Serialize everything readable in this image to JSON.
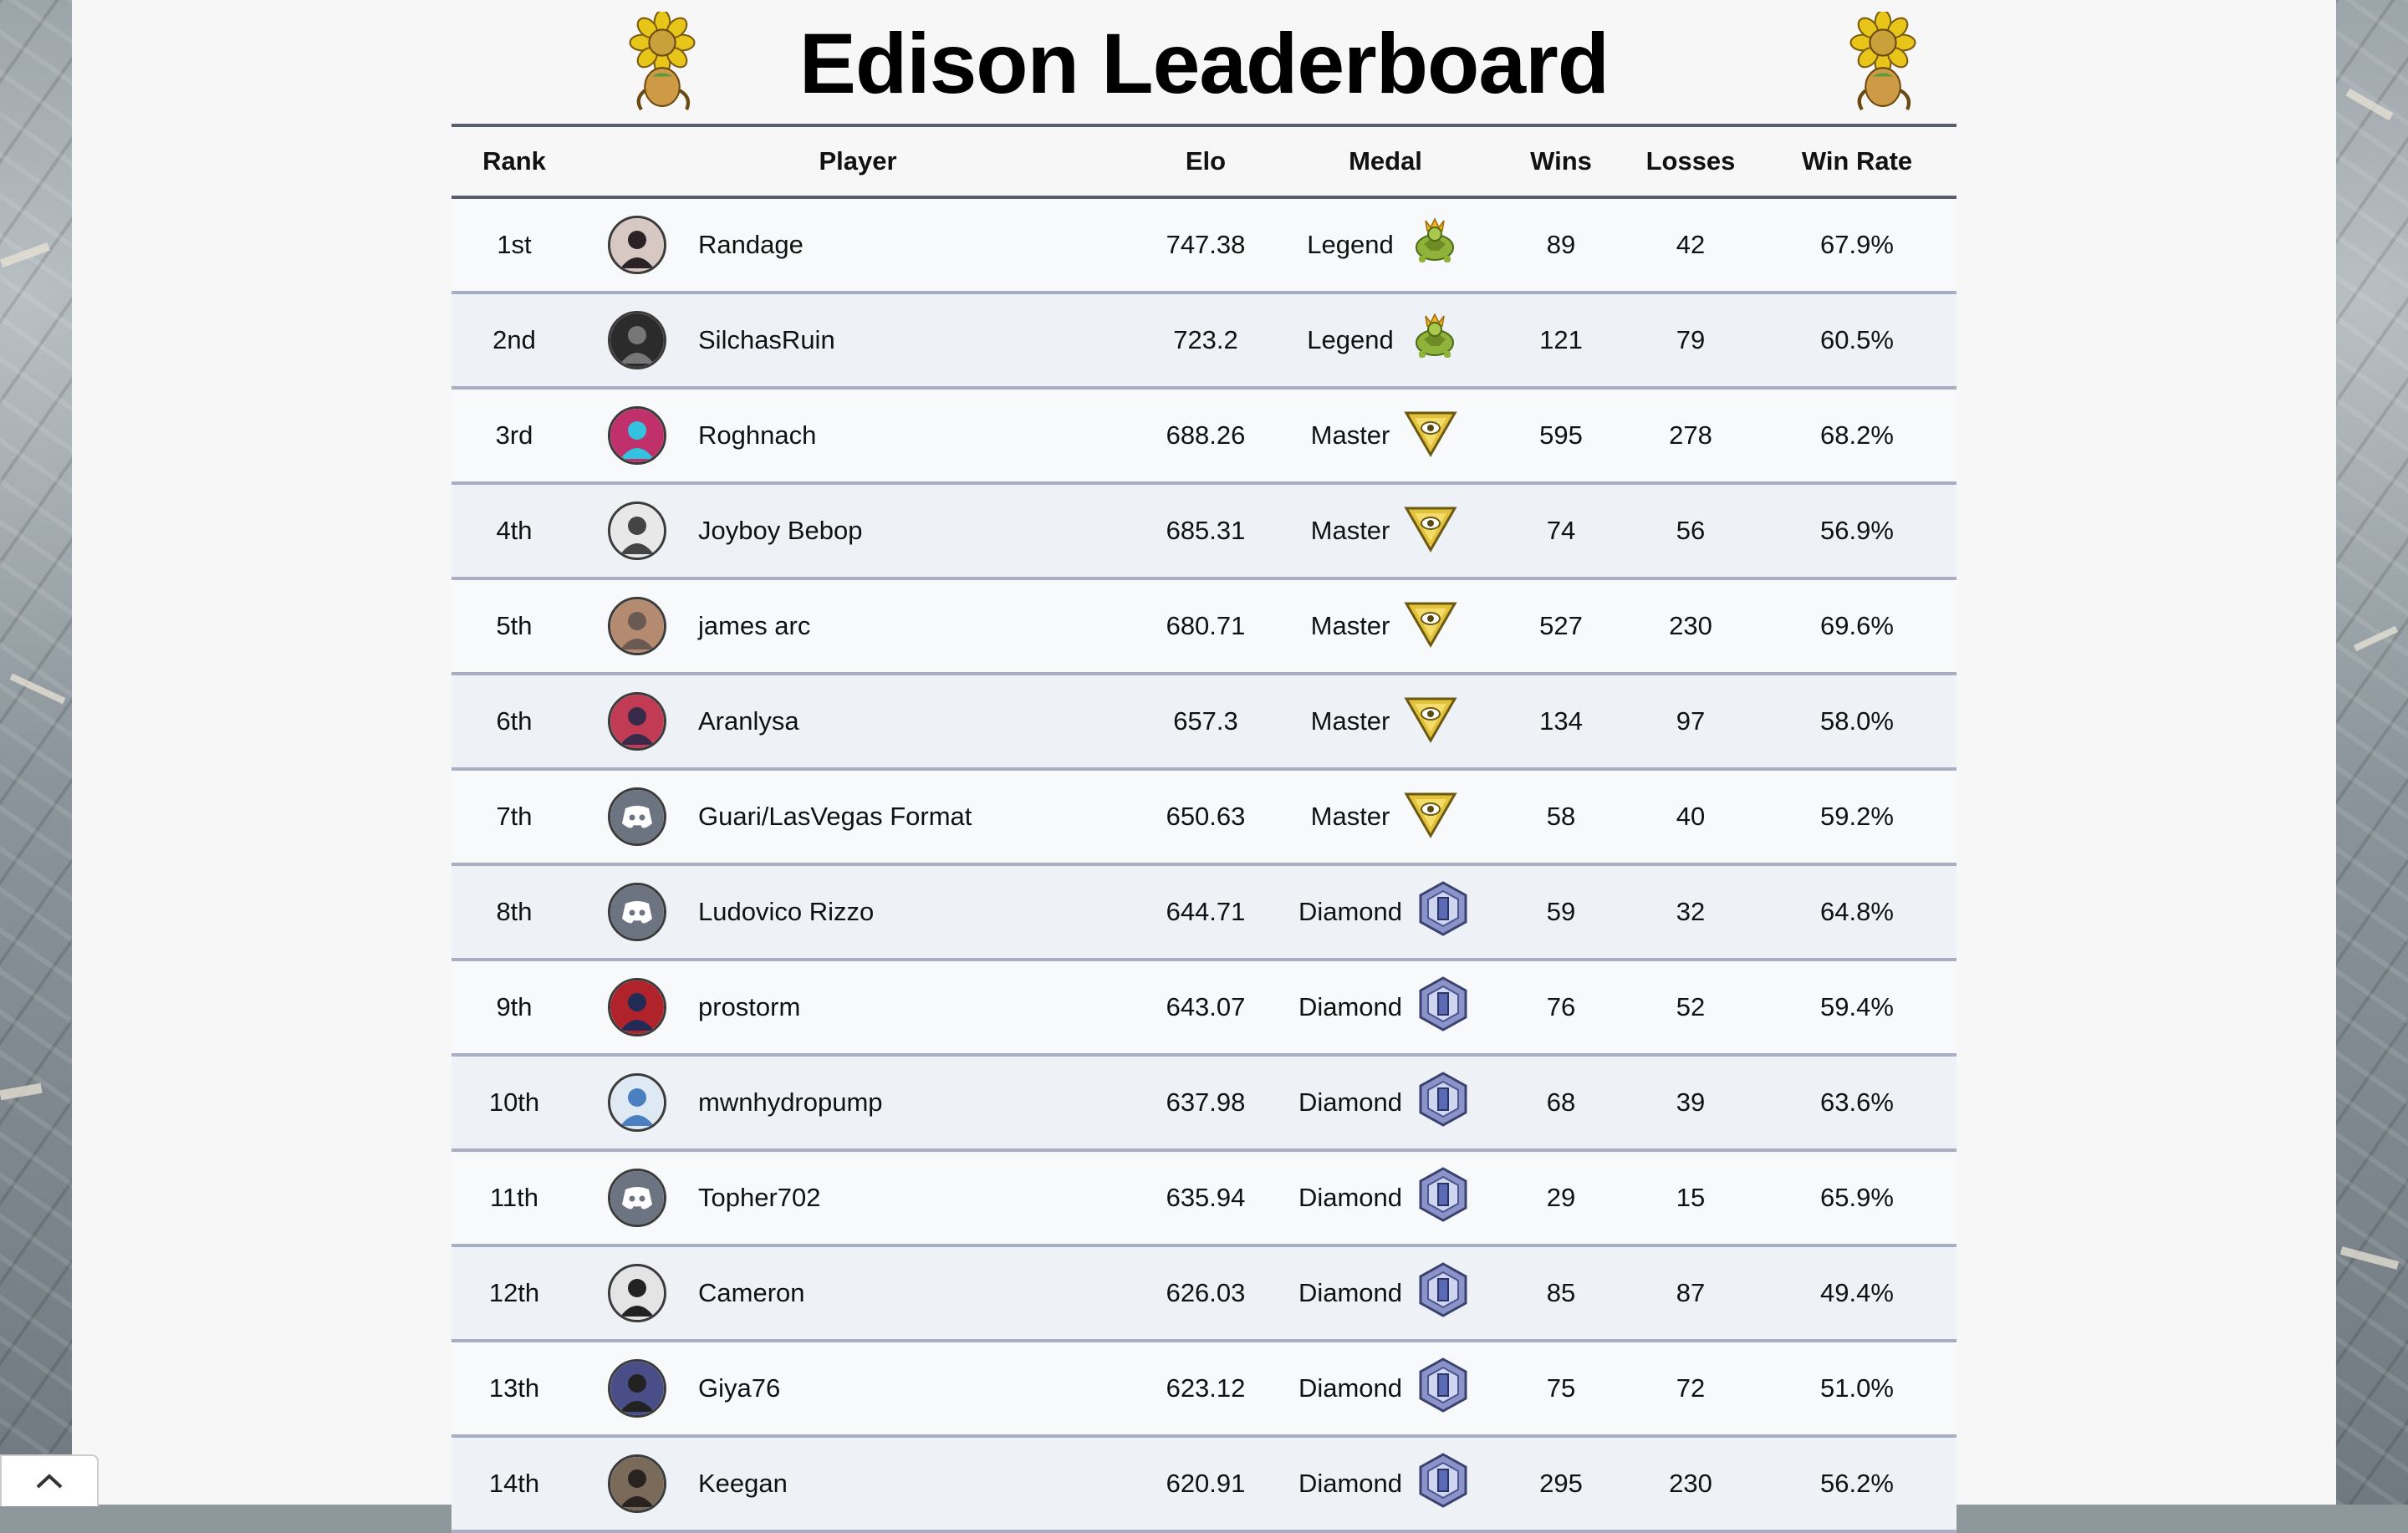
{
  "title": "Edison Leaderboard",
  "columns": {
    "rank": "Rank",
    "player": "Player",
    "elo": "Elo",
    "medal": "Medal",
    "wins": "Wins",
    "losses": "Losses",
    "win_rate": "Win Rate"
  },
  "colors": {
    "header_rule": "#5a5d6b",
    "row_rule": "#a9aec2",
    "row_even": "#eef2f6",
    "row_odd": "#f8f9fa",
    "discord_avatar": "#6b7480"
  },
  "medal_icons": {
    "Legend": "crowned-turtle-icon",
    "Master": "gold-eye-triangle-icon",
    "Diamond": "diamond-hexagon-icon"
  },
  "rows": [
    {
      "rank": "1st",
      "player": "Randage",
      "avatar": "photo",
      "elo": "747.38",
      "medal": "Legend",
      "wins": "89",
      "losses": "42",
      "win_rate": "67.9%"
    },
    {
      "rank": "2nd",
      "player": "SilchasRuin",
      "avatar": "photo",
      "elo": "723.2",
      "medal": "Legend",
      "wins": "121",
      "losses": "79",
      "win_rate": "60.5%"
    },
    {
      "rank": "3rd",
      "player": "Roghnach",
      "avatar": "photo",
      "elo": "688.26",
      "medal": "Master",
      "wins": "595",
      "losses": "278",
      "win_rate": "68.2%"
    },
    {
      "rank": "4th",
      "player": "Joyboy Bebop",
      "avatar": "photo",
      "elo": "685.31",
      "medal": "Master",
      "wins": "74",
      "losses": "56",
      "win_rate": "56.9%"
    },
    {
      "rank": "5th",
      "player": "james arc",
      "avatar": "photo",
      "elo": "680.71",
      "medal": "Master",
      "wins": "527",
      "losses": "230",
      "win_rate": "69.6%"
    },
    {
      "rank": "6th",
      "player": "Aranlysa",
      "avatar": "photo",
      "elo": "657.3",
      "medal": "Master",
      "wins": "134",
      "losses": "97",
      "win_rate": "58.0%"
    },
    {
      "rank": "7th",
      "player": "Guari/LasVegas Format",
      "avatar": "discord",
      "elo": "650.63",
      "medal": "Master",
      "wins": "58",
      "losses": "40",
      "win_rate": "59.2%"
    },
    {
      "rank": "8th",
      "player": "Ludovico Rizzo",
      "avatar": "discord",
      "elo": "644.71",
      "medal": "Diamond",
      "wins": "59",
      "losses": "32",
      "win_rate": "64.8%"
    },
    {
      "rank": "9th",
      "player": "prostorm",
      "avatar": "photo",
      "elo": "643.07",
      "medal": "Diamond",
      "wins": "76",
      "losses": "52",
      "win_rate": "59.4%"
    },
    {
      "rank": "10th",
      "player": "mwnhydropump",
      "avatar": "photo",
      "elo": "637.98",
      "medal": "Diamond",
      "wins": "68",
      "losses": "39",
      "win_rate": "63.6%"
    },
    {
      "rank": "11th",
      "player": "Topher702",
      "avatar": "discord",
      "elo": "635.94",
      "medal": "Diamond",
      "wins": "29",
      "losses": "15",
      "win_rate": "65.9%"
    },
    {
      "rank": "12th",
      "player": "Cameron",
      "avatar": "photo",
      "elo": "626.03",
      "medal": "Diamond",
      "wins": "85",
      "losses": "87",
      "win_rate": "49.4%"
    },
    {
      "rank": "13th",
      "player": "Giya76",
      "avatar": "photo",
      "elo": "623.12",
      "medal": "Diamond",
      "wins": "75",
      "losses": "72",
      "win_rate": "51.0%"
    },
    {
      "rank": "14th",
      "player": "Keegan",
      "avatar": "photo",
      "elo": "620.91",
      "medal": "Diamond",
      "wins": "295",
      "losses": "230",
      "win_rate": "56.2%"
    }
  ]
}
